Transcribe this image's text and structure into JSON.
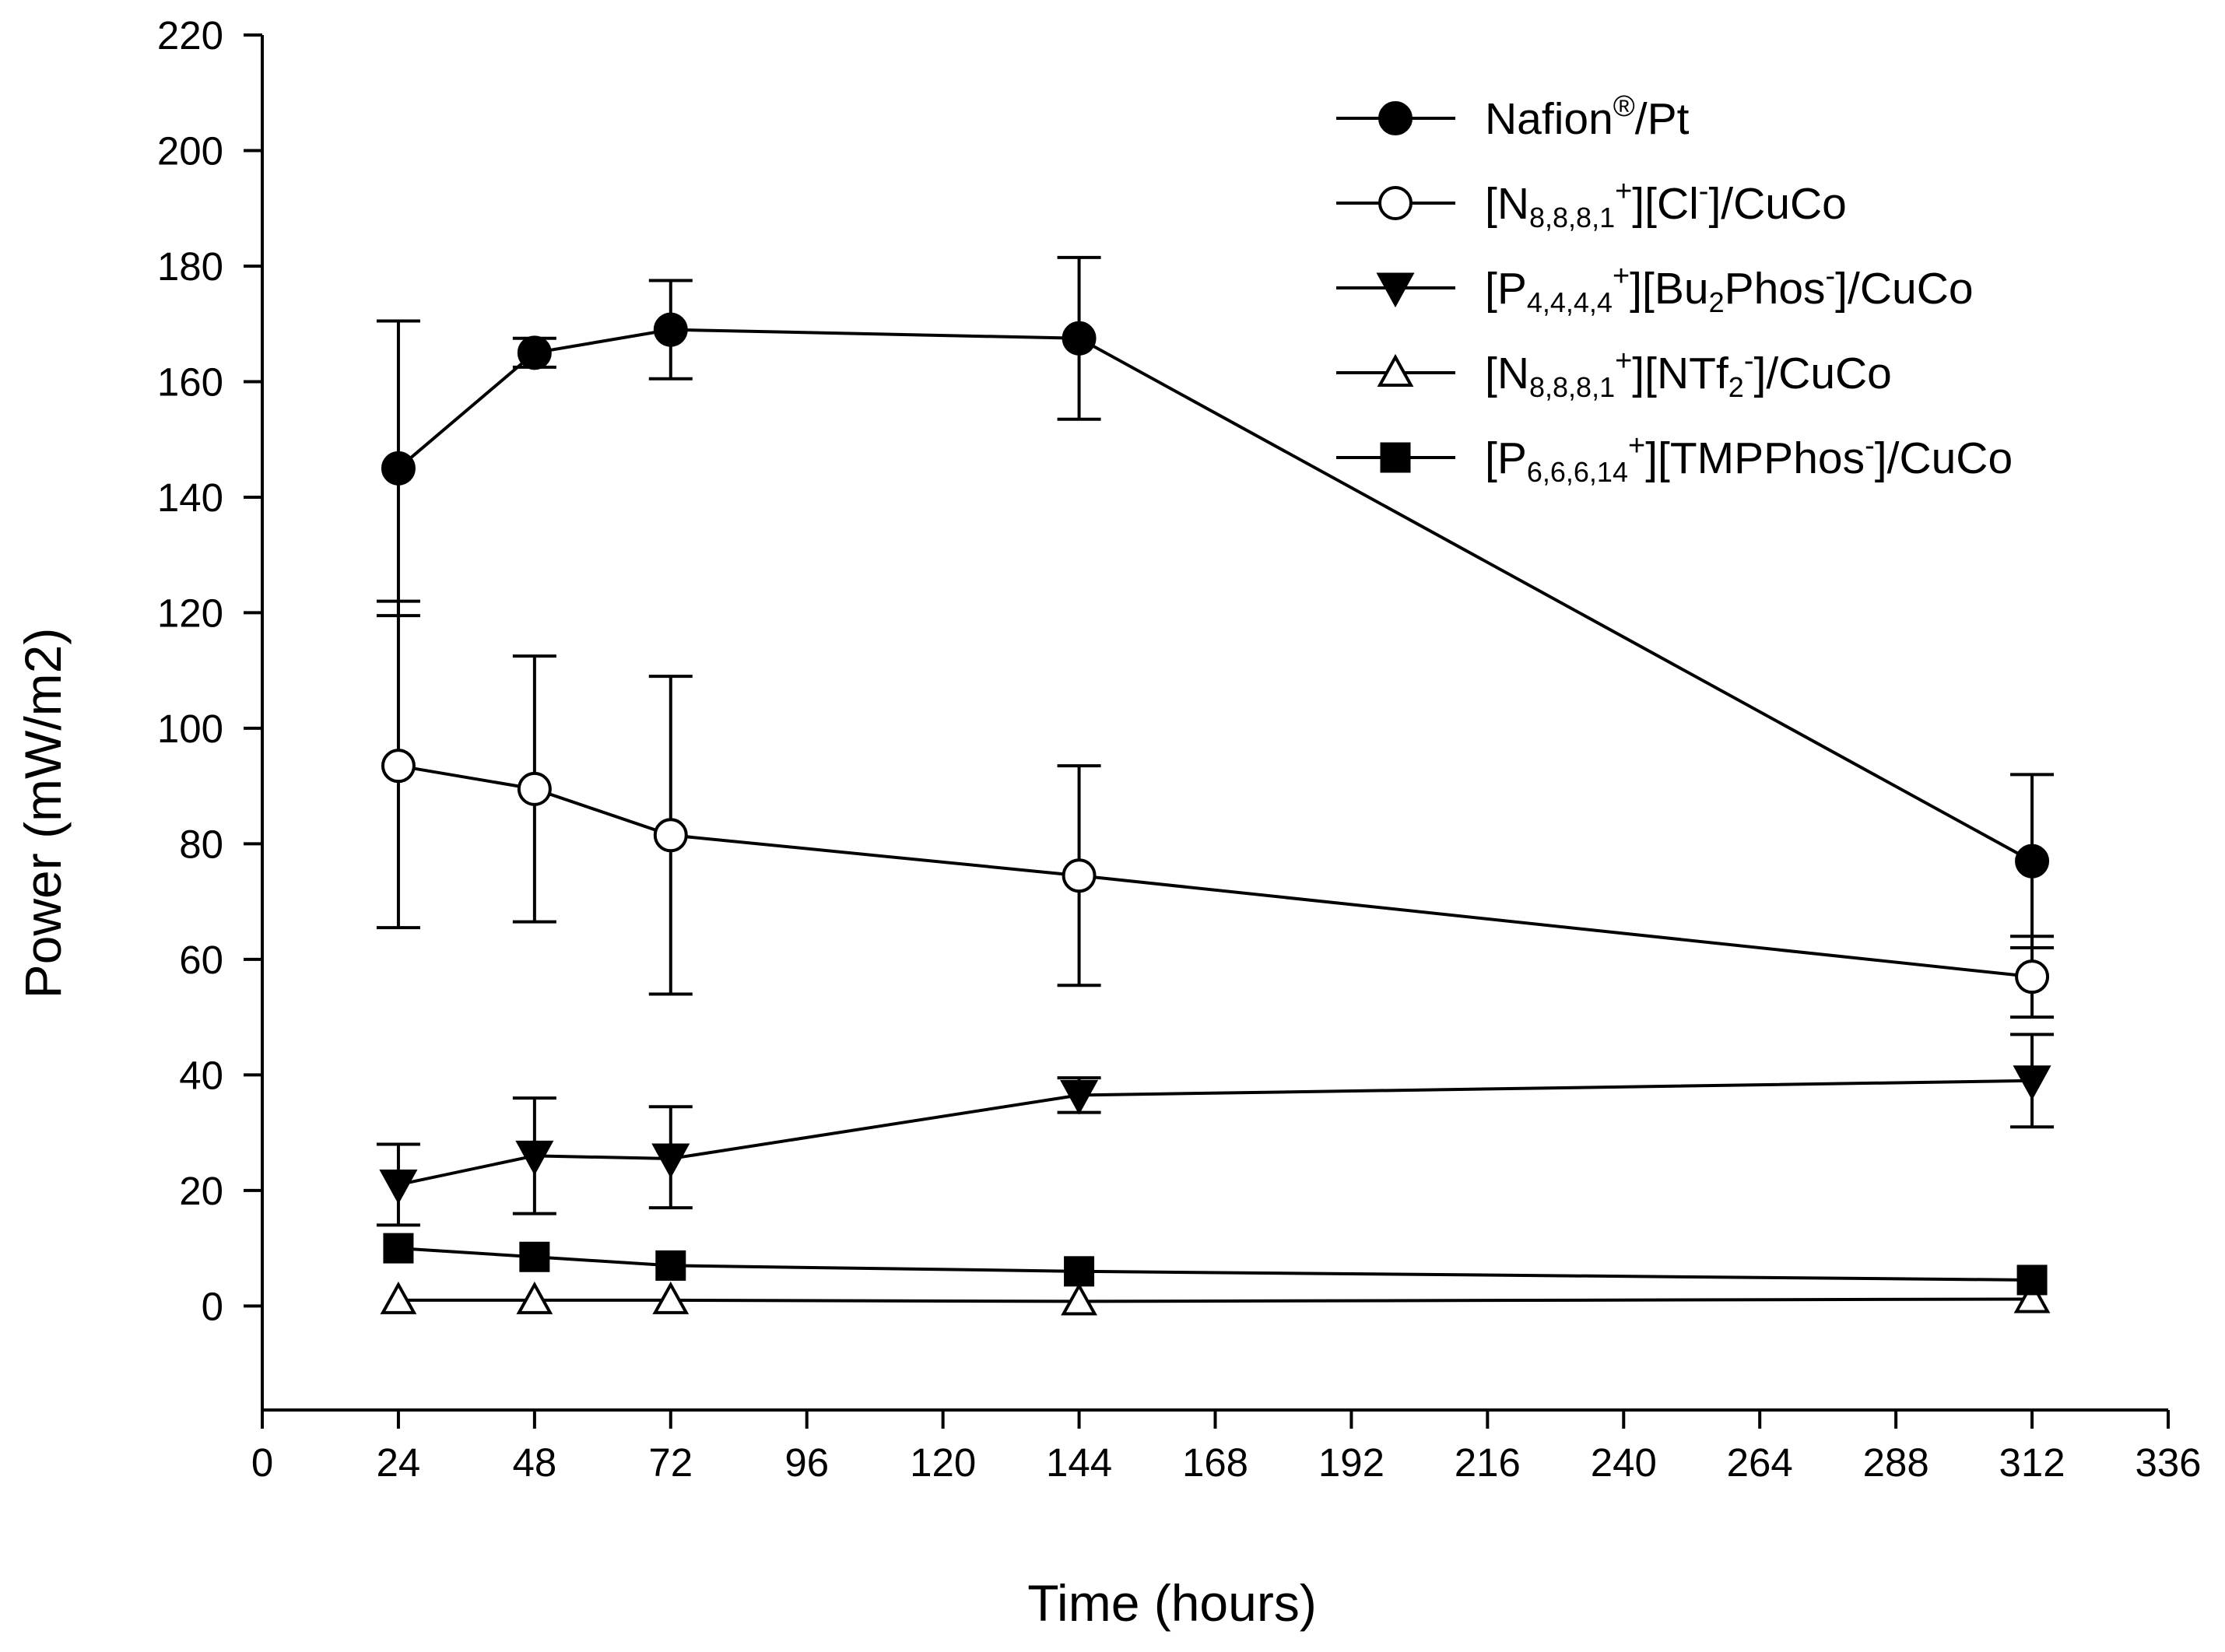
{
  "chart_data": {
    "type": "line",
    "title": "",
    "xlabel": "Time (hours)",
    "ylabel": "Power (mW/m2)",
    "xlim": [
      0,
      336
    ],
    "ylim": [
      -18,
      220
    ],
    "xticks": [
      "0",
      "24",
      "48",
      "72",
      "96",
      "120",
      "144",
      "168",
      "192",
      "216",
      "240",
      "264",
      "288",
      "312",
      "336"
    ],
    "yticks": [
      "0",
      "20",
      "40",
      "60",
      "80",
      "100",
      "120",
      "140",
      "160",
      "180",
      "200",
      "220"
    ],
    "x": [
      24,
      48,
      72,
      144,
      312
    ],
    "legend_position": "top-right",
    "series": [
      {
        "name": "Nafion®/Pt",
        "legend": [
          {
            "t": "Nafion"
          },
          {
            "t": "®",
            "s": "sup"
          },
          {
            "t": "/Pt"
          }
        ],
        "marker": "circle-filled",
        "values": [
          145,
          165,
          169,
          167.5,
          77
        ],
        "err_upper": [
          25.5,
          2.5,
          8.5,
          14,
          15
        ],
        "err_lower": [
          25.5,
          2.5,
          8.5,
          14,
          15
        ]
      },
      {
        "name": "[N8,8,8,1+][Cl-]/CuCo",
        "legend": [
          {
            "t": "[N"
          },
          {
            "t": "8,8,8,1",
            "s": "sub"
          },
          {
            "t": "+",
            "s": "sup"
          },
          {
            "t": "][Cl"
          },
          {
            "t": "-",
            "s": "sup"
          },
          {
            "t": "]/CuCo"
          }
        ],
        "marker": "circle-open",
        "values": [
          93.5,
          89.5,
          81.5,
          74.5,
          57
        ],
        "err_upper": [
          28.5,
          23,
          27.5,
          19,
          7
        ],
        "err_lower": [
          28,
          23,
          27.5,
          19,
          7
        ]
      },
      {
        "name": "[P4,4,4,4+][Bu2Phos-]/CuCo",
        "legend": [
          {
            "t": "[P"
          },
          {
            "t": "4,4,4,4",
            "s": "sub"
          },
          {
            "t": "+",
            "s": "sup"
          },
          {
            "t": "][Bu"
          },
          {
            "t": "2",
            "s": "sub"
          },
          {
            "t": "Phos"
          },
          {
            "t": "-",
            "s": "sup"
          },
          {
            "t": "]/CuCo"
          }
        ],
        "marker": "triangle-down-filled",
        "values": [
          21,
          26,
          25.5,
          36.5,
          39
        ],
        "err_upper": [
          7,
          10,
          9,
          3,
          8
        ],
        "err_lower": [
          7,
          10,
          8.5,
          3,
          8
        ]
      },
      {
        "name": "[N8,8,8,1+][NTf2-]/CuCo",
        "legend": [
          {
            "t": "[N"
          },
          {
            "t": "8,8,8,1",
            "s": "sub"
          },
          {
            "t": "+",
            "s": "sup"
          },
          {
            "t": "][NTf"
          },
          {
            "t": "2",
            "s": "sub"
          },
          {
            "t": "-",
            "s": "sup"
          },
          {
            "t": "]/CuCo"
          }
        ],
        "marker": "triangle-up-open",
        "values": [
          1,
          1,
          1,
          0.8,
          1.2
        ],
        "err_upper": [
          0,
          0,
          0,
          0,
          0
        ],
        "err_lower": [
          0,
          0,
          0,
          0,
          0
        ]
      },
      {
        "name": "[P6,6,6,14+][TMPPhos-]/CuCo",
        "legend": [
          {
            "t": "[P"
          },
          {
            "t": "6,6,6,14",
            "s": "sub"
          },
          {
            "t": "+",
            "s": "sup"
          },
          {
            "t": "][TMPPhos"
          },
          {
            "t": "-",
            "s": "sup"
          },
          {
            "t": "]/CuCo"
          }
        ],
        "marker": "square-filled",
        "values": [
          10,
          8.5,
          7,
          6,
          4.5
        ],
        "err_upper": [
          0,
          0,
          0,
          0,
          0
        ],
        "err_lower": [
          0,
          0,
          0,
          0,
          0
        ]
      }
    ]
  }
}
